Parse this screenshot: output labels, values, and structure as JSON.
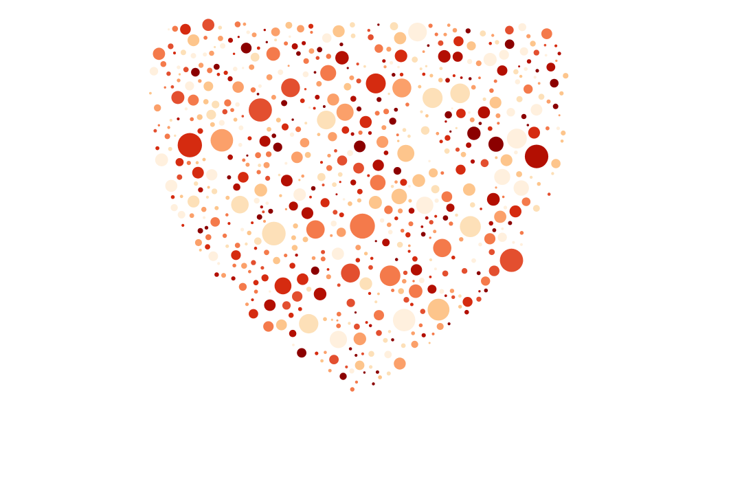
{
  "artwork": {
    "subject": "heart",
    "background_color": "#ffffff",
    "palette": [
      "#8b0000",
      "#b30f02",
      "#d52b10",
      "#e34f2f",
      "#f47a4b",
      "#fba06a",
      "#fdc58c",
      "#fde0b8",
      "#fff0de"
    ],
    "dot_count": 640,
    "seed": 7
  }
}
